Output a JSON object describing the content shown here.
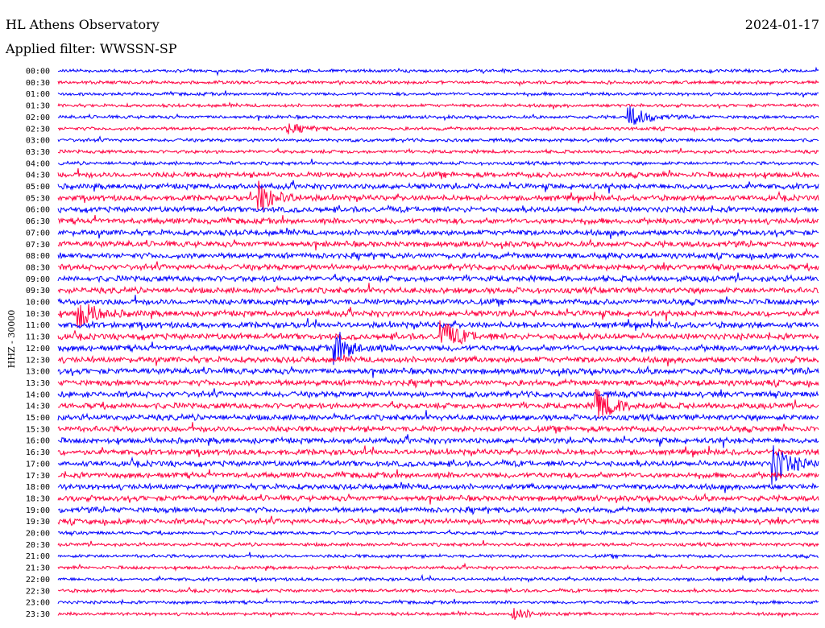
{
  "header": {
    "station": "HL Athens Observatory",
    "date": "2024-01-17",
    "filter": "Applied filter: WWSSN-SP"
  },
  "chart_data": {
    "type": "line",
    "title": "HL Athens Observatory",
    "ylabel": "HHZ - 30000",
    "colors": [
      "#0000ff",
      "#ff0040"
    ],
    "rows": [
      "00:00",
      "00:30",
      "01:00",
      "01:30",
      "02:00",
      "02:30",
      "03:00",
      "03:30",
      "04:00",
      "04:30",
      "05:00",
      "05:30",
      "06:00",
      "06:30",
      "07:00",
      "07:30",
      "08:00",
      "08:30",
      "09:00",
      "09:30",
      "10:00",
      "10:30",
      "11:00",
      "11:30",
      "12:00",
      "12:30",
      "13:00",
      "13:30",
      "14:00",
      "14:30",
      "15:00",
      "15:30",
      "16:00",
      "16:30",
      "17:00",
      "17:30",
      "18:00",
      "18:30",
      "19:00",
      "19:30",
      "20:00",
      "20:30",
      "21:00",
      "21:30",
      "22:00",
      "22:30",
      "23:00",
      "23:30"
    ],
    "events": [
      {
        "row": 4,
        "minute": 22.5,
        "amplitude": 14
      },
      {
        "row": 5,
        "minute": 9,
        "amplitude": 6
      },
      {
        "row": 11,
        "minute": 7.9,
        "amplitude": 20
      },
      {
        "row": 21,
        "minute": 0.8,
        "amplitude": 18
      },
      {
        "row": 23,
        "minute": 15.1,
        "amplitude": 20
      },
      {
        "row": 24,
        "minute": 10.9,
        "amplitude": 18
      },
      {
        "row": 29,
        "minute": 21.2,
        "amplitude": 22
      },
      {
        "row": 34,
        "minute": 28.2,
        "amplitude": 24
      },
      {
        "row": 47,
        "minute": 17.9,
        "amplitude": 8
      }
    ]
  }
}
